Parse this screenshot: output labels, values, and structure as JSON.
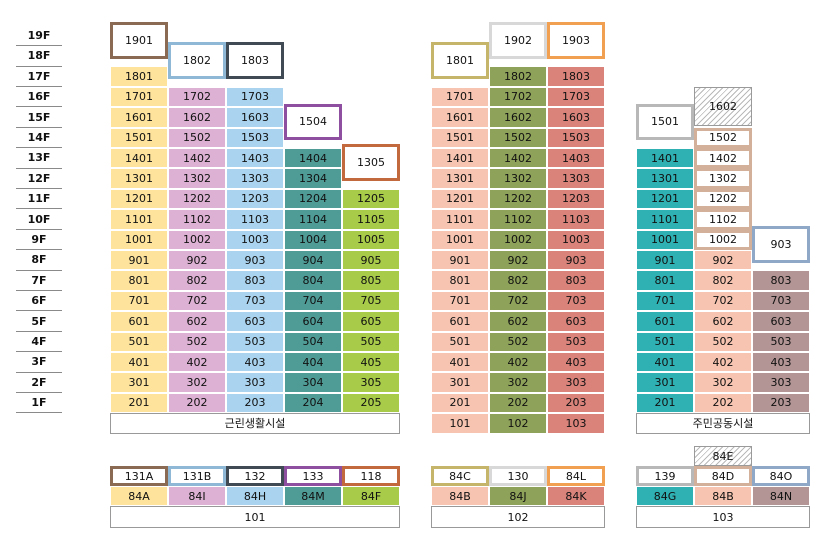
{
  "floors": [
    "19F",
    "18F",
    "17F",
    "16F",
    "15F",
    "14F",
    "13F",
    "12F",
    "11F",
    "10F",
    "9F",
    "8F",
    "7F",
    "6F",
    "5F",
    "4F",
    "3F",
    "2F",
    "1F"
  ],
  "colors": {
    "yellow": "#fde39c",
    "pink": "#ddb1d3",
    "blue": "#a9d3ee",
    "teal": "#4f9b96",
    "green": "#a8cb49",
    "peach": "#f6c4b0",
    "olive": "#8ea259",
    "salmon": "#d9837b",
    "cyan": "#2fb1b3",
    "mauve": "#b39595"
  },
  "columns": [
    {
      "id": "c1",
      "color": "yellow",
      "border": "#8a6a52",
      "top": "1901",
      "units": [
        "1801",
        "1701",
        "1601",
        "1501",
        "1401",
        "1301",
        "1201",
        "1101",
        "1001",
        "901",
        "801",
        "701",
        "601",
        "501",
        "401",
        "301",
        "201"
      ]
    },
    {
      "id": "c2",
      "color": "pink",
      "border": "#8fb8d6",
      "top": "1802",
      "units": [
        "1702",
        "1602",
        "1502",
        "1402",
        "1302",
        "1202",
        "1102",
        "1002",
        "902",
        "802",
        "702",
        "602",
        "502",
        "402",
        "302",
        "202"
      ]
    },
    {
      "id": "c3",
      "color": "blue",
      "border": "#3f4a55",
      "top": "1803",
      "units": [
        "1703",
        "1603",
        "1503",
        "1403",
        "1303",
        "1203",
        "1103",
        "1003",
        "903",
        "803",
        "703",
        "603",
        "503",
        "403",
        "303",
        "203"
      ]
    },
    {
      "id": "c4",
      "color": "teal",
      "border": "#8f4fa0",
      "top": "1504",
      "units": [
        "1404",
        "1304",
        "1204",
        "1104",
        "1004",
        "904",
        "804",
        "704",
        "604",
        "504",
        "404",
        "304",
        "204"
      ]
    },
    {
      "id": "c5",
      "color": "green",
      "border": "#c26a3e",
      "top": "1305",
      "units": [
        "1205",
        "1105",
        "1005",
        "905",
        "805",
        "705",
        "605",
        "505",
        "405",
        "305",
        "205"
      ]
    },
    {
      "id": "c6",
      "color": "peach",
      "border": "#c4b56a",
      "top": "1801",
      "units": [
        "1701",
        "1601",
        "1501",
        "1401",
        "1301",
        "1201",
        "1101",
        "1001",
        "901",
        "801",
        "701",
        "601",
        "501",
        "401",
        "301",
        "201",
        "101"
      ]
    },
    {
      "id": "c7",
      "color": "olive",
      "border": "#d8d8d8",
      "top": "1902",
      "units": [
        "1802",
        "1702",
        "1602",
        "1502",
        "1402",
        "1302",
        "1202",
        "1102",
        "1002",
        "902",
        "802",
        "702",
        "602",
        "502",
        "402",
        "302",
        "202",
        "102"
      ]
    },
    {
      "id": "c8",
      "color": "salmon",
      "border": "#f0a050",
      "top": "1903",
      "units": [
        "1803",
        "1703",
        "1603",
        "1503",
        "1403",
        "1303",
        "1203",
        "1103",
        "1003",
        "903",
        "803",
        "703",
        "603",
        "503",
        "403",
        "303",
        "203",
        "103"
      ]
    },
    {
      "id": "c9",
      "color": "cyan",
      "border": "#b8b8b8",
      "top": "1501",
      "units": [
        "1401",
        "1301",
        "1201",
        "1101",
        "1001",
        "901",
        "801",
        "701",
        "601",
        "501",
        "401",
        "301",
        "201"
      ]
    },
    {
      "id": "c10",
      "color": "peach",
      "border": "#d3b09a",
      "hatch": "1602",
      "outlined": [
        "1502",
        "1402",
        "1302",
        "1202",
        "1102",
        "1002"
      ],
      "units": [
        "902",
        "802",
        "702",
        "602",
        "502",
        "402",
        "302",
        "202"
      ]
    },
    {
      "id": "c11",
      "color": "mauve",
      "border": "#8fa8c8",
      "top": "903",
      "units": [
        "803",
        "703",
        "603",
        "503",
        "403",
        "303",
        "203"
      ]
    }
  ],
  "commercial_label": "근린생활시설",
  "community_label": "주민공동시설",
  "legend": {
    "groups": [
      {
        "name": "101",
        "types": [
          {
            "code": "131A",
            "unit": "84A",
            "color": "yellow",
            "border": "#8a6a52"
          },
          {
            "code": "131B",
            "unit": "84I",
            "color": "pink",
            "border": "#8fb8d6"
          },
          {
            "code": "132",
            "unit": "84H",
            "color": "blue",
            "border": "#3f4a55"
          },
          {
            "code": "133",
            "unit": "84M",
            "color": "teal",
            "border": "#8f4fa0"
          },
          {
            "code": "118",
            "unit": "84F",
            "color": "green",
            "border": "#c26a3e"
          }
        ]
      },
      {
        "name": "102",
        "types": [
          {
            "code": "84C",
            "unit": "84B",
            "color": "peach",
            "border": "#c4b56a"
          },
          {
            "code": "130",
            "unit": "84J",
            "color": "olive",
            "border": "#d8d8d8"
          },
          {
            "code": "84L",
            "unit": "84K",
            "color": "salmon",
            "border": "#f0a050"
          }
        ]
      },
      {
        "name": "103",
        "extra": "84E",
        "types": [
          {
            "code": "139",
            "unit": "84G",
            "color": "cyan",
            "border": "#b8b8b8"
          },
          {
            "code": "84D",
            "unit": "84B",
            "color": "peach",
            "border": "#d3b09a"
          },
          {
            "code": "84O",
            "unit": "84N",
            "color": "mauve",
            "border": "#8fa8c8"
          }
        ]
      }
    ]
  }
}
